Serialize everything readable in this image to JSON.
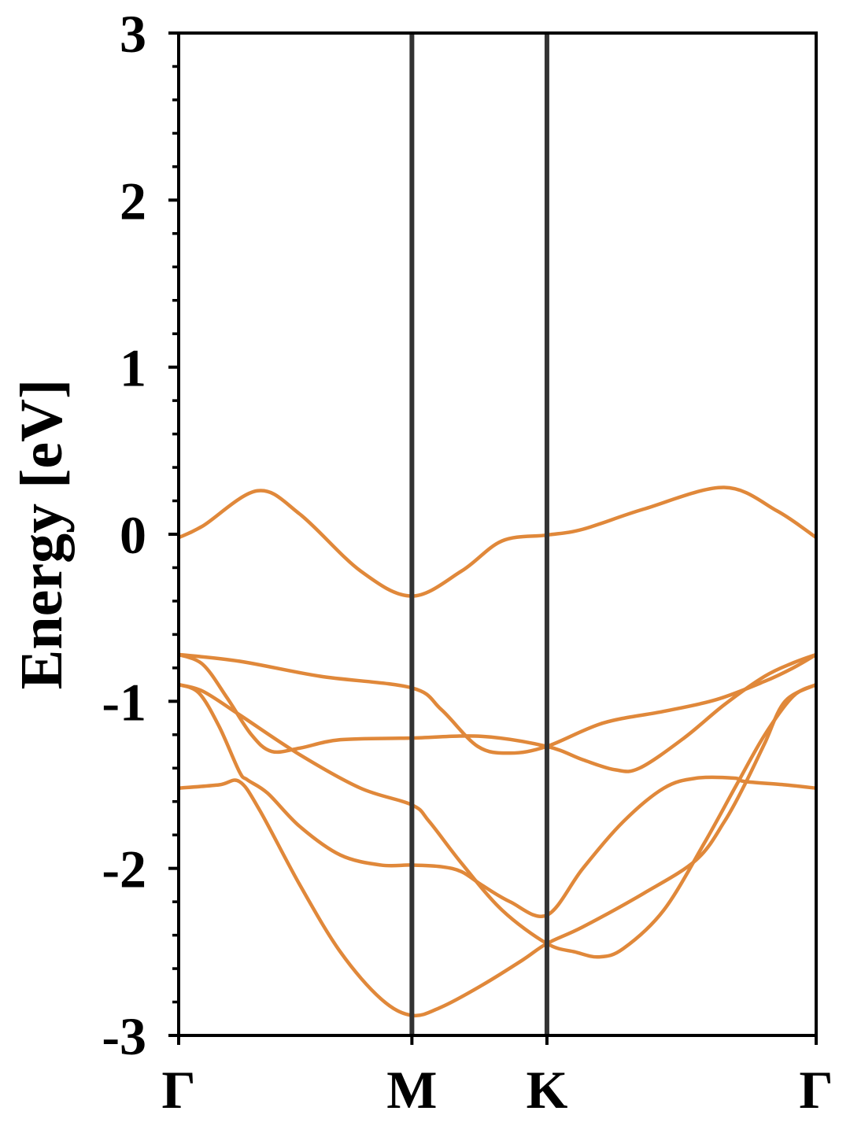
{
  "chart_data": {
    "type": "line",
    "title": "",
    "xlabel": "",
    "ylabel": "Energy [eV]",
    "ylim": [
      -3,
      3
    ],
    "xlim": [
      0,
      1.577
    ],
    "yticks": [
      3,
      2,
      1,
      0,
      -1,
      -2,
      -3
    ],
    "ytick_labels": [
      "3",
      "2",
      "1",
      "0",
      "-1",
      "-2",
      "-3"
    ],
    "yminor_step": 0.2,
    "grid": false,
    "band_color": "#e0883a",
    "kpath_line_color": "#333333",
    "high_symmetry_points": [
      {
        "label": "Γ",
        "k": 0
      },
      {
        "label": "M",
        "k": 0.577
      },
      {
        "label": "K",
        "k": 0.911
      },
      {
        "label": "Γ",
        "k": 1.577
      }
    ],
    "series": [
      {
        "points": [
          [
            0,
            -0.02
          ],
          [
            0.06,
            0.05
          ],
          [
            0.195,
            0.26
          ],
          [
            0.3,
            0.12
          ],
          [
            0.45,
            -0.22
          ],
          [
            0.577,
            -0.37
          ],
          [
            0.7,
            -0.22
          ],
          [
            0.8,
            -0.04
          ],
          [
            0.911,
            -0.005
          ],
          [
            1.0,
            0.03
          ],
          [
            1.15,
            0.15
          ],
          [
            1.349,
            0.28
          ],
          [
            1.48,
            0.14
          ],
          [
            1.577,
            -0.02
          ]
        ]
      },
      {
        "points": [
          [
            0,
            -0.72
          ],
          [
            0.15,
            -0.76
          ],
          [
            0.35,
            -0.85
          ],
          [
            0.577,
            -0.92
          ],
          [
            0.65,
            -1.05
          ],
          [
            0.74,
            -1.27
          ],
          [
            0.82,
            -1.31
          ],
          [
            0.911,
            -1.27
          ],
          [
            1.05,
            -1.13
          ],
          [
            1.2,
            -1.06
          ],
          [
            1.33,
            -0.99
          ],
          [
            1.45,
            -0.88
          ],
          [
            1.52,
            -0.8
          ],
          [
            1.577,
            -0.72
          ]
        ]
      },
      {
        "points": [
          [
            0,
            -0.72
          ],
          [
            0.06,
            -0.78
          ],
          [
            0.12,
            -0.98
          ],
          [
            0.18,
            -1.2
          ],
          [
            0.23,
            -1.3
          ],
          [
            0.3,
            -1.28
          ],
          [
            0.4,
            -1.23
          ],
          [
            0.577,
            -1.22
          ],
          [
            0.75,
            -1.21
          ],
          [
            0.911,
            -1.27
          ],
          [
            1.0,
            -1.35
          ],
          [
            1.08,
            -1.41
          ],
          [
            1.14,
            -1.4
          ],
          [
            1.25,
            -1.22
          ],
          [
            1.35,
            -1.02
          ],
          [
            1.45,
            -0.85
          ],
          [
            1.52,
            -0.77
          ],
          [
            1.577,
            -0.72
          ]
        ]
      },
      {
        "points": [
          [
            0,
            -0.9
          ],
          [
            0.06,
            -0.94
          ],
          [
            0.15,
            -1.08
          ],
          [
            0.3,
            -1.32
          ],
          [
            0.45,
            -1.52
          ],
          [
            0.577,
            -1.62
          ],
          [
            0.62,
            -1.72
          ],
          [
            0.7,
            -1.97
          ],
          [
            0.8,
            -2.25
          ],
          [
            0.911,
            -2.45
          ],
          [
            0.98,
            -2.5
          ],
          [
            1.04,
            -2.53
          ],
          [
            1.1,
            -2.48
          ],
          [
            1.2,
            -2.25
          ],
          [
            1.3,
            -1.85
          ],
          [
            1.38,
            -1.5
          ],
          [
            1.45,
            -1.2
          ],
          [
            1.52,
            -0.97
          ],
          [
            1.577,
            -0.9
          ]
        ]
      },
      {
        "points": [
          [
            0,
            -0.9
          ],
          [
            0.05,
            -0.95
          ],
          [
            0.1,
            -1.15
          ],
          [
            0.15,
            -1.42
          ],
          [
            0.17,
            -1.47
          ],
          [
            0.22,
            -1.55
          ],
          [
            0.3,
            -1.75
          ],
          [
            0.4,
            -1.92
          ],
          [
            0.5,
            -1.98
          ],
          [
            0.577,
            -1.98
          ],
          [
            0.65,
            -1.99
          ],
          [
            0.7,
            -2.02
          ],
          [
            0.75,
            -2.1
          ],
          [
            0.82,
            -2.2
          ],
          [
            0.911,
            -2.28
          ],
          [
            1.0,
            -2.0
          ],
          [
            1.1,
            -1.72
          ],
          [
            1.2,
            -1.52
          ],
          [
            1.28,
            -1.46
          ],
          [
            1.375,
            -1.46
          ],
          [
            1.4,
            -1.48
          ],
          [
            1.5,
            -1.5
          ],
          [
            1.577,
            -1.52
          ]
        ]
      },
      {
        "points": [
          [
            0,
            -1.52
          ],
          [
            0.1,
            -1.5
          ],
          [
            0.15,
            -1.48
          ],
          [
            0.2,
            -1.65
          ],
          [
            0.3,
            -2.1
          ],
          [
            0.4,
            -2.5
          ],
          [
            0.5,
            -2.78
          ],
          [
            0.577,
            -2.88
          ],
          [
            0.65,
            -2.83
          ],
          [
            0.75,
            -2.7
          ],
          [
            0.85,
            -2.55
          ],
          [
            0.911,
            -2.45
          ],
          [
            1.0,
            -2.35
          ],
          [
            1.15,
            -2.15
          ],
          [
            1.28,
            -1.95
          ],
          [
            1.35,
            -1.72
          ],
          [
            1.4,
            -1.5
          ],
          [
            1.45,
            -1.25
          ],
          [
            1.5,
            -1.0
          ],
          [
            1.577,
            -0.9
          ]
        ]
      }
    ]
  }
}
